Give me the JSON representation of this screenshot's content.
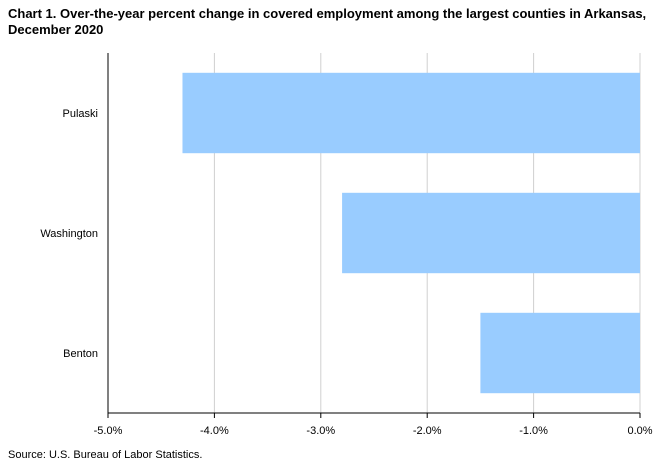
{
  "chart_data": {
    "type": "bar",
    "orientation": "horizontal",
    "title": "Chart 1. Over-the-year percent change in covered employment among the largest counties  in Arkansas,  December 2020",
    "categories": [
      "Pulaski",
      "Washington",
      "Benton"
    ],
    "values": [
      -4.3,
      -2.8,
      -1.5
    ],
    "xlim": [
      -5.0,
      0.0
    ],
    "xticks": [
      -5.0,
      -4.0,
      -3.0,
      -2.0,
      -1.0,
      0.0
    ],
    "xtick_labels": [
      "-5.0%",
      "-4.0%",
      "-3.0%",
      "-2.0%",
      "-1.0%",
      "0.0%"
    ],
    "grid": "vertical",
    "bar_color": "#99ccff",
    "source": "Source: U.S. Bureau of Labor Statistics."
  }
}
